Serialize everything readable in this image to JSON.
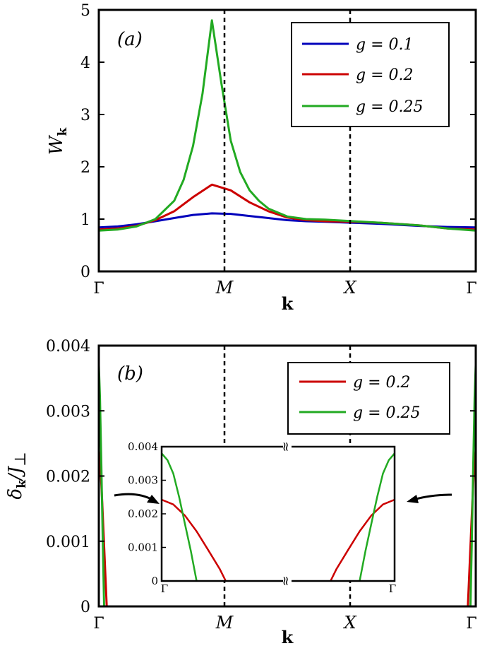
{
  "chart_data": [
    {
      "type": "line",
      "panel_label": "(a)",
      "ylabel": "W",
      "ylabel_sub": "k",
      "xlabel": "k",
      "ylim": [
        0,
        5
      ],
      "yticks": [
        "0",
        "1",
        "2",
        "3",
        "4",
        "5"
      ],
      "x_ticks": [
        {
          "label": "Γ",
          "italic": false
        },
        {
          "label": "M",
          "italic": true
        },
        {
          "label": "X",
          "italic": true
        },
        {
          "label": "Γ",
          "italic": false
        }
      ],
      "vertical_dashed_at": [
        "M",
        "X"
      ],
      "legend_position": "top-right",
      "series": [
        {
          "name": "g = 0.1",
          "color": "#0000bb",
          "points": [
            [
              0,
              0.84
            ],
            [
              0.1,
              0.86
            ],
            [
              0.2,
              0.9
            ],
            [
              0.3,
              0.96
            ],
            [
              0.4,
              1.02
            ],
            [
              0.5,
              1.08
            ],
            [
              0.6,
              1.11
            ],
            [
              0.7,
              1.1
            ],
            [
              0.8,
              1.06
            ],
            [
              0.9,
              1.02
            ],
            [
              1,
              0.98
            ],
            [
              1.1,
              0.96
            ],
            [
              1.2,
              0.95
            ],
            [
              1.35,
              0.93
            ],
            [
              1.5,
              0.91
            ],
            [
              1.7,
              0.87
            ],
            [
              1.85,
              0.85
            ],
            [
              2,
              0.84
            ]
          ]
        },
        {
          "name": "g = 0.2",
          "color": "#cc0000",
          "points": [
            [
              0,
              0.8
            ],
            [
              0.1,
              0.82
            ],
            [
              0.2,
              0.87
            ],
            [
              0.3,
              0.98
            ],
            [
              0.4,
              1.15
            ],
            [
              0.5,
              1.42
            ],
            [
              0.6,
              1.66
            ],
            [
              0.7,
              1.55
            ],
            [
              0.8,
              1.32
            ],
            [
              0.9,
              1.15
            ],
            [
              1,
              1.03
            ],
            [
              1.1,
              0.98
            ],
            [
              1.2,
              0.96
            ],
            [
              1.35,
              0.95
            ],
            [
              1.5,
              0.93
            ],
            [
              1.7,
              0.88
            ],
            [
              1.85,
              0.82
            ],
            [
              2,
              0.8
            ]
          ]
        },
        {
          "name": "g = 0.25",
          "color": "#22aa22",
          "points": [
            [
              0,
              0.78
            ],
            [
              0.1,
              0.8
            ],
            [
              0.2,
              0.86
            ],
            [
              0.3,
              1.0
            ],
            [
              0.4,
              1.35
            ],
            [
              0.45,
              1.75
            ],
            [
              0.5,
              2.4
            ],
            [
              0.55,
              3.4
            ],
            [
              0.6,
              4.8
            ],
            [
              0.65,
              3.6
            ],
            [
              0.7,
              2.5
            ],
            [
              0.75,
              1.9
            ],
            [
              0.8,
              1.55
            ],
            [
              0.85,
              1.35
            ],
            [
              0.9,
              1.2
            ],
            [
              1,
              1.05
            ],
            [
              1.1,
              1.0
            ],
            [
              1.2,
              0.99
            ],
            [
              1.35,
              0.96
            ],
            [
              1.5,
              0.93
            ],
            [
              1.7,
              0.88
            ],
            [
              1.85,
              0.82
            ],
            [
              2,
              0.78
            ]
          ]
        }
      ]
    },
    {
      "type": "line",
      "panel_label": "(b)",
      "ylabel": "δ",
      "ylabel_sub": "k",
      "ylabel_div": "/J",
      "ylabel_sub2": "⊥",
      "xlabel": "k",
      "ylim": [
        0,
        0.004
      ],
      "yticks": [
        "0",
        "0.001",
        "0.002",
        "0.003",
        "0.004"
      ],
      "x_ticks": [
        {
          "label": "Γ",
          "italic": false
        },
        {
          "label": "M",
          "italic": true
        },
        {
          "label": "X",
          "italic": true
        },
        {
          "label": "Γ",
          "italic": false
        }
      ],
      "vertical_dashed_at": [
        "M",
        "X"
      ],
      "legend_position": "top-right",
      "series": [
        {
          "name": "g = 0.2",
          "color": "#cc0000",
          "points_left": [
            [
              0,
              0.0024
            ],
            [
              0.008,
              0.0022
            ],
            [
              0.018,
              0.0016
            ],
            [
              0.03,
              0.0008
            ],
            [
              0.042,
              0.0
            ]
          ],
          "points_right": [
            [
              1.958,
              0.0
            ],
            [
              1.97,
              0.0008
            ],
            [
              1.982,
              0.0016
            ],
            [
              1.992,
              0.0022
            ],
            [
              2,
              0.0024
            ]
          ]
        },
        {
          "name": "g = 0.25",
          "color": "#22aa22",
          "points_left": [
            [
              0,
              0.0037
            ],
            [
              0.006,
              0.0032
            ],
            [
              0.013,
              0.0022
            ],
            [
              0.021,
              0.001
            ],
            [
              0.028,
              0.0
            ]
          ],
          "points_right": [
            [
              1.972,
              0.0
            ],
            [
              1.979,
              0.001
            ],
            [
              1.987,
              0.0022
            ],
            [
              1.994,
              0.0032
            ],
            [
              2,
              0.0037
            ]
          ]
        }
      ],
      "inset": {
        "ylim": [
          0,
          0.004
        ],
        "yticks": [
          "0",
          "0.001",
          "0.002",
          "0.003",
          "0.004"
        ],
        "x_ticks": [
          "Γ",
          "Γ"
        ],
        "break_symbol": "≈",
        "series": [
          {
            "name": "g = 0.2",
            "color": "#cc0000",
            "points_left": [
              [
                0,
                0.00242
              ],
              [
                0.1,
                0.00228
              ],
              [
                0.2,
                0.00195
              ],
              [
                0.3,
                0.00148
              ],
              [
                0.4,
                0.00092
              ],
              [
                0.5,
                0.00035
              ],
              [
                0.55,
                0.0
              ]
            ],
            "points_right": [
              [
                1.45,
                0.0
              ],
              [
                1.5,
                0.00035
              ],
              [
                1.6,
                0.00092
              ],
              [
                1.7,
                0.00148
              ],
              [
                1.8,
                0.00195
              ],
              [
                1.9,
                0.00228
              ],
              [
                2,
                0.00242
              ]
            ]
          },
          {
            "name": "g = 0.25",
            "color": "#22aa22",
            "points_left": [
              [
                0,
                0.0038
              ],
              [
                0.05,
                0.0036
              ],
              [
                0.1,
                0.0032
              ],
              [
                0.15,
                0.0025
              ],
              [
                0.2,
                0.0017
              ],
              [
                0.25,
                0.0009
              ],
              [
                0.3,
                0.0
              ]
            ],
            "points_right": [
              [
                1.7,
                0.0
              ],
              [
                1.75,
                0.0009
              ],
              [
                1.8,
                0.0017
              ],
              [
                1.85,
                0.0025
              ],
              [
                1.9,
                0.0032
              ],
              [
                1.95,
                0.0036
              ],
              [
                2,
                0.0038
              ]
            ]
          }
        ]
      }
    }
  ]
}
